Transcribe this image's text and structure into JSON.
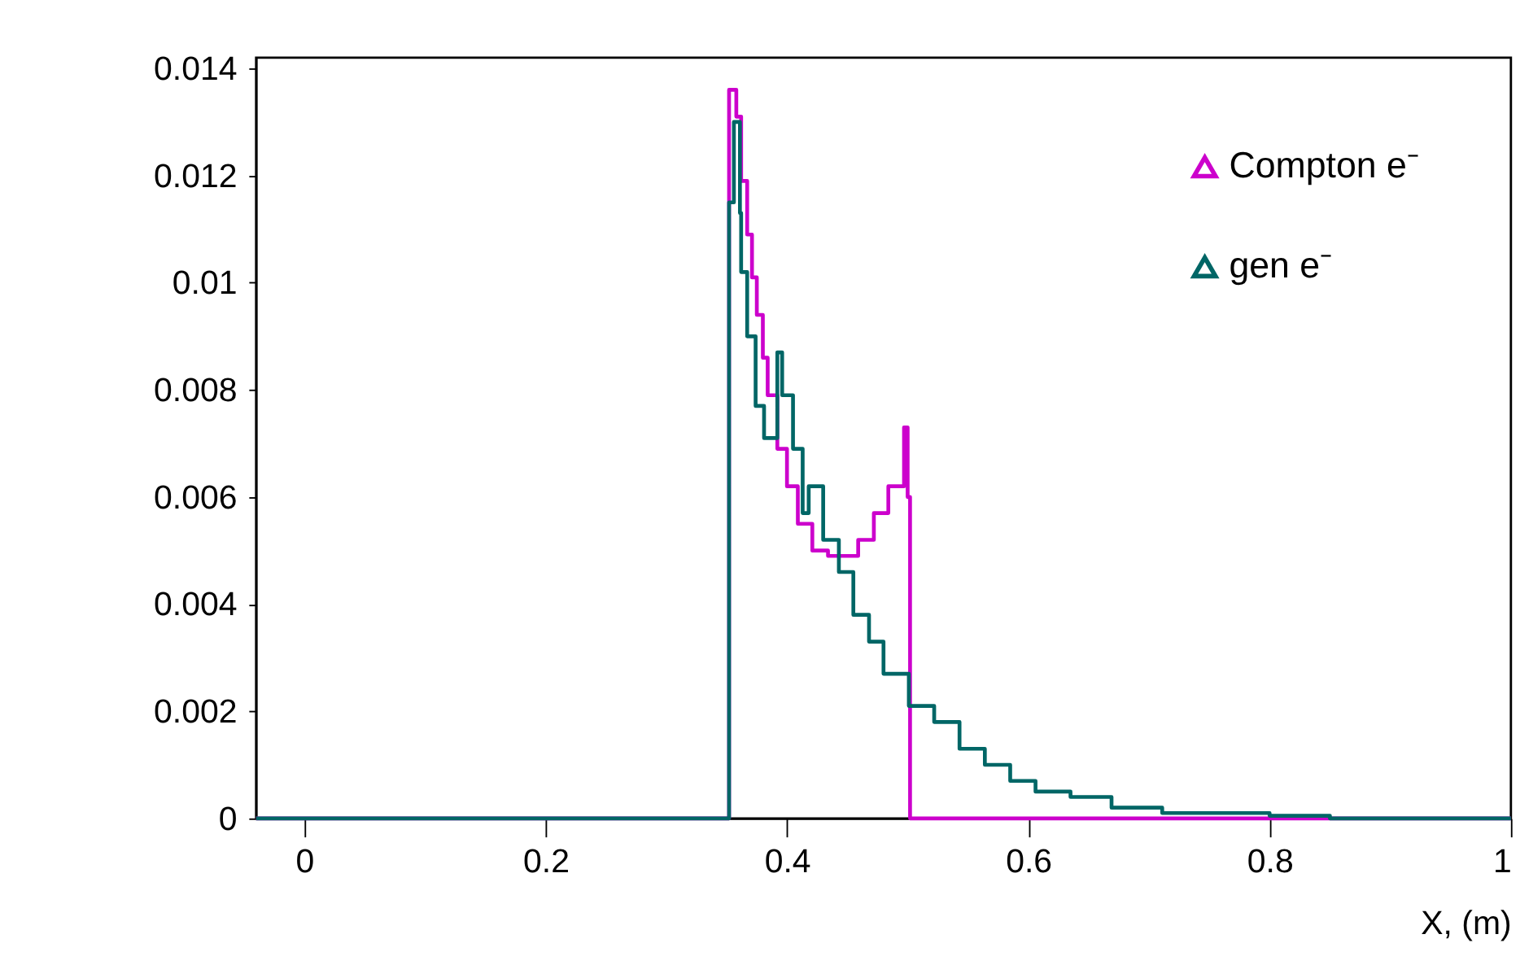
{
  "chart_data": {
    "type": "step",
    "xlabel": "X, (m)",
    "xlim": [
      -0.04,
      1
    ],
    "ylim": [
      0,
      0.0142
    ],
    "xticks": [
      0,
      0.2,
      0.4,
      0.6,
      0.8,
      1
    ],
    "yticks": [
      0,
      0.002,
      0.004,
      0.006,
      0.008,
      0.01,
      0.012,
      0.014
    ],
    "grid": false,
    "legend": "top right",
    "series": [
      {
        "name": "Compton e⁻",
        "color": "#cc00cc",
        "x": [
          -0.04,
          0.352,
          0.358,
          0.362,
          0.367,
          0.371,
          0.375,
          0.38,
          0.384,
          0.392,
          0.4,
          0.409,
          0.421,
          0.434,
          0.447,
          0.459,
          0.472,
          0.484,
          0.497,
          0.5,
          0.502,
          1
        ],
        "values": [
          0,
          0.0136,
          0.0131,
          0.0119,
          0.0109,
          0.0101,
          0.0094,
          0.0086,
          0.0079,
          0.0069,
          0.0062,
          0.0055,
          0.005,
          0.0049,
          0.0049,
          0.0052,
          0.0057,
          0.0062,
          0.0073,
          0.006,
          0,
          0
        ]
      },
      {
        "name": "gen e⁻",
        "color": "#006666",
        "x": [
          -0.04,
          0.352,
          0.356,
          0.361,
          0.362,
          0.367,
          0.374,
          0.381,
          0.392,
          0.396,
          0.405,
          0.413,
          0.418,
          0.43,
          0.443,
          0.455,
          0.468,
          0.48,
          0.501,
          0.522,
          0.543,
          0.564,
          0.585,
          0.606,
          0.635,
          0.669,
          0.711,
          0.75,
          0.8,
          0.85,
          1
        ],
        "values": [
          0,
          0.0115,
          0.013,
          0.0113,
          0.0102,
          0.009,
          0.0077,
          0.0071,
          0.0087,
          0.0079,
          0.0069,
          0.0057,
          0.0062,
          0.0052,
          0.0046,
          0.0038,
          0.0033,
          0.0027,
          0.0021,
          0.0018,
          0.0013,
          0.001,
          0.0007,
          0.0005,
          0.0004,
          0.0002,
          0.0001,
          0.0001,
          5e-05,
          0,
          0
        ]
      }
    ]
  }
}
